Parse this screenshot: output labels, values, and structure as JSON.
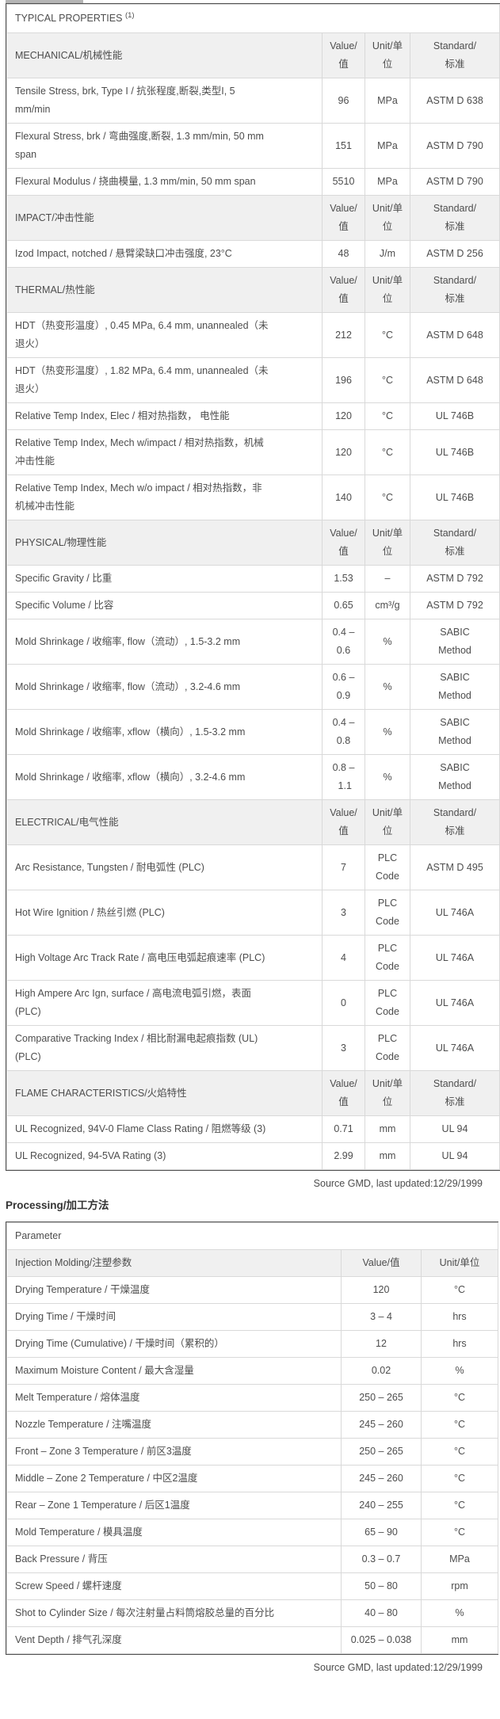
{
  "colors": {
    "section_header_bg": "#f0f0f0",
    "border_dark": "#4f4f4f",
    "border_light": "#d9d9d9",
    "text": "#4d4d4d",
    "tab_strip": "#b5b5b5"
  },
  "typical_properties": {
    "title": "TYPICAL PROPERTIES",
    "title_note": "(1)",
    "col_headers": {
      "value": "Value/\n值",
      "unit": "Unit/单\n位",
      "standard": "Standard/\n标准"
    },
    "sections": [
      {
        "name": "MECHANICAL/机械性能",
        "rows": [
          {
            "label": "Tensile Stress, brk, Type I / 抗张程度,断裂,类型I, 5\nmm/min",
            "value": "96",
            "unit": "MPa",
            "standard": "ASTM D 638"
          },
          {
            "label": "Flexural Stress, brk / 弯曲强度,断裂, 1.3 mm/min, 50 mm\nspan",
            "value": "151",
            "unit": "MPa",
            "standard": "ASTM D 790"
          },
          {
            "label": "Flexural Modulus / 挠曲模量, 1.3 mm/min, 50 mm span",
            "value": "5510",
            "unit": "MPa",
            "standard": "ASTM D 790"
          }
        ]
      },
      {
        "name": "IMPACT/冲击性能",
        "rows": [
          {
            "label": "Izod Impact, notched / 悬臂梁缺口冲击强度, 23°C",
            "value": "48",
            "unit": "J/m",
            "standard": "ASTM D 256"
          }
        ]
      },
      {
        "name": "THERMAL/热性能",
        "rows": [
          {
            "label": "HDT（热变形温度）, 0.45 MPa, 6.4 mm, unannealed（未\n退火）",
            "value": "212",
            "unit": "°C",
            "standard": "ASTM D 648"
          },
          {
            "label": "HDT（热变形温度）, 1.82 MPa, 6.4 mm, unannealed（未\n退火）",
            "value": "196",
            "unit": "°C",
            "standard": "ASTM D 648"
          },
          {
            "label": "Relative Temp Index, Elec / 相对热指数， 电性能",
            "value": "120",
            "unit": "°C",
            "standard": "UL 746B"
          },
          {
            "label": "Relative Temp Index, Mech w/impact / 相对热指数，机械\n冲击性能",
            "value": "120",
            "unit": "°C",
            "standard": "UL 746B"
          },
          {
            "label": "Relative Temp Index, Mech w/o impact / 相对热指数，非\n机械冲击性能",
            "value": "140",
            "unit": "°C",
            "standard": "UL 746B"
          }
        ]
      },
      {
        "name": "PHYSICAL/物理性能",
        "rows": [
          {
            "label": "Specific Gravity / 比重",
            "value": "1.53",
            "unit": "–",
            "standard": "ASTM D 792"
          },
          {
            "label": "Specific Volume / 比容",
            "value": "0.65",
            "unit": "cm³/g",
            "standard": "ASTM D 792"
          },
          {
            "label": "Mold Shrinkage / 收缩率, flow（流动）, 1.5-3.2 mm",
            "value": "0.4 –\n0.6",
            "unit": "%",
            "standard": "SABIC\nMethod"
          },
          {
            "label": "Mold Shrinkage / 收缩率, flow（流动）, 3.2-4.6 mm",
            "value": "0.6 –\n0.9",
            "unit": "%",
            "standard": "SABIC\nMethod"
          },
          {
            "label": "Mold Shrinkage / 收缩率, xflow（横向）, 1.5-3.2 mm",
            "value": "0.4 –\n0.8",
            "unit": "%",
            "standard": "SABIC\nMethod"
          },
          {
            "label": "Mold Shrinkage / 收缩率, xflow（横向）, 3.2-4.6 mm",
            "value": "0.8 – 1.1",
            "unit": "%",
            "standard": "SABIC\nMethod"
          }
        ]
      },
      {
        "name": "ELECTRICAL/电气性能",
        "rows": [
          {
            "label": "Arc Resistance, Tungsten / 耐电弧性 (PLC)",
            "value": "7",
            "unit": "PLC\nCode",
            "standard": "ASTM D 495"
          },
          {
            "label": "Hot Wire Ignition / 热丝引燃 (PLC)",
            "value": "3",
            "unit": "PLC\nCode",
            "standard": "UL 746A"
          },
          {
            "label": "High Voltage Arc Track Rate / 高电压电弧起痕速率 (PLC)",
            "value": "4",
            "unit": "PLC\nCode",
            "standard": "UL 746A"
          },
          {
            "label": "High Ampere Arc Ign, surface / 高电流电弧引燃，表面\n(PLC)",
            "value": "0",
            "unit": "PLC\nCode",
            "standard": "UL 746A"
          },
          {
            "label": "Comparative Tracking Index / 相比耐漏电起痕指数 (UL)\n(PLC)",
            "value": "3",
            "unit": "PLC\nCode",
            "standard": "UL 746A"
          }
        ]
      },
      {
        "name": "FLAME CHARACTERISTICS/火焰特性",
        "rows": [
          {
            "label": "UL Recognized, 94V-0 Flame Class Rating / 阻燃等级 (3)",
            "value": "0.71",
            "unit": "mm",
            "standard": "UL 94"
          },
          {
            "label": "UL Recognized, 94-5VA Rating (3)",
            "value": "2.99",
            "unit": "mm",
            "standard": "UL 94"
          }
        ]
      }
    ],
    "source": "Source GMD, last updated:12/29/1999"
  },
  "processing": {
    "heading": "Processing/加工方法",
    "param_header": "Parameter",
    "col_headers": {
      "param": "Injection Molding/注塑参数",
      "value": "Value/值",
      "unit": "Unit/单位"
    },
    "rows": [
      {
        "label": "Drying Temperature / 干燥温度",
        "value": "120",
        "unit": "°C"
      },
      {
        "label": "Drying Time / 干燥时间",
        "value": "3 – 4",
        "unit": "hrs"
      },
      {
        "label": "Drying Time (Cumulative) / 干燥时间（累积的）",
        "value": "12",
        "unit": "hrs"
      },
      {
        "label": "Maximum Moisture Content / 最大含湿量",
        "value": "0.02",
        "unit": "%"
      },
      {
        "label": "Melt Temperature / 熔体温度",
        "value": "250 – 265",
        "unit": "°C"
      },
      {
        "label": "Nozzle Temperature / 注嘴温度",
        "value": "245 – 260",
        "unit": "°C"
      },
      {
        "label": "Front – Zone 3 Temperature / 前区3温度",
        "value": "250 – 265",
        "unit": "°C"
      },
      {
        "label": "Middle – Zone 2 Temperature / 中区2温度",
        "value": "245 – 260",
        "unit": "°C"
      },
      {
        "label": "Rear – Zone 1 Temperature / 后区1温度",
        "value": "240 – 255",
        "unit": "°C"
      },
      {
        "label": "Mold Temperature / 模具温度",
        "value": "65 – 90",
        "unit": "°C"
      },
      {
        "label": "Back Pressure / 背压",
        "value": "0.3 – 0.7",
        "unit": "MPa"
      },
      {
        "label": "Screw Speed / 螺杆速度",
        "value": "50 – 80",
        "unit": "rpm"
      },
      {
        "label": "Shot to Cylinder Size / 每次注射量占料筒熔胶总量的百分比",
        "value": "40 – 80",
        "unit": "%"
      },
      {
        "label": "Vent Depth / 排气孔深度",
        "value": "0.025 – 0.038",
        "unit": "mm"
      }
    ],
    "source": "Source GMD, last updated:12/29/1999"
  }
}
